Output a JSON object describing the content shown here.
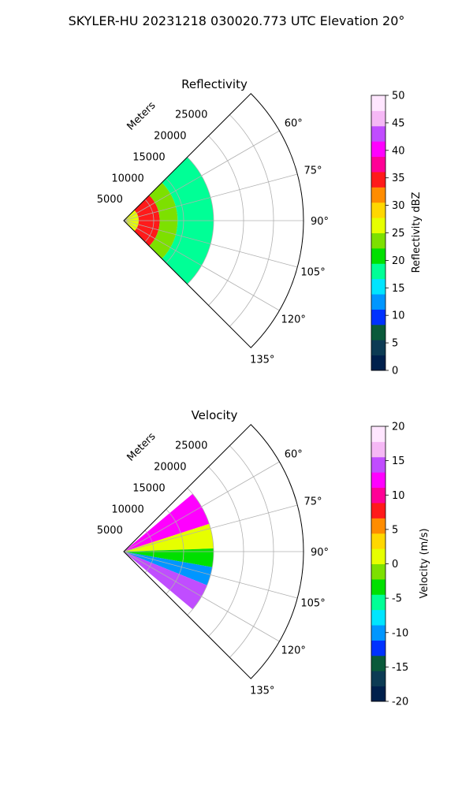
{
  "figure_title": "SKYLER-HU  20231218  030020.773 UTC Elevation 20°",
  "colors": {
    "grid": "#b0b0b0",
    "frame": "#000000",
    "radar_palette": [
      "#00204c",
      "#0c3b54",
      "#0a5a3a",
      "#0032ff",
      "#0096ff",
      "#00e5ff",
      "#00ff96",
      "#00e000",
      "#7de000",
      "#e6ff00",
      "#ffd700",
      "#ff8c00",
      "#ff1a1a",
      "#ff0096",
      "#ff00ff",
      "#c04dff",
      "#f5b8f5",
      "#ffe6ff"
    ]
  },
  "chart_data": [
    {
      "type": "polar-sector",
      "title": "Reflectivity",
      "radial_axis_label": "Meters",
      "radial_ticks": [
        "5000",
        "10000",
        "15000",
        "20000",
        "25000"
      ],
      "radial_range": [
        0,
        30000
      ],
      "angular_ticks": [
        "60°",
        "75°",
        "90°",
        "105°",
        "120°",
        "135°"
      ],
      "angular_range_deg": [
        45,
        135
      ],
      "grid": true,
      "colorbar": {
        "label": "Reflectivity dBZ",
        "ticks": [
          "0",
          "5",
          "10",
          "15",
          "20",
          "25",
          "30",
          "35",
          "40",
          "45",
          "50"
        ],
        "range": [
          0,
          50
        ]
      },
      "field": {
        "extent_m": [
          2000,
          15000
        ],
        "bands": [
          {
            "r_m": [
              0,
              2500
            ],
            "value": 25
          },
          {
            "r_m": [
              2500,
              6000
            ],
            "value": 34
          },
          {
            "r_m": [
              6000,
              9000
            ],
            "value": 24
          },
          {
            "r_m": [
              9000,
              15000
            ],
            "value": 17
          }
        ]
      }
    },
    {
      "type": "polar-sector",
      "title": "Velocity",
      "radial_axis_label": "Meters",
      "radial_ticks": [
        "5000",
        "10000",
        "15000",
        "20000",
        "25000"
      ],
      "radial_range": [
        0,
        30000
      ],
      "angular_ticks": [
        "60°",
        "75°",
        "90°",
        "105°",
        "120°",
        "135°"
      ],
      "angular_range_deg": [
        45,
        135
      ],
      "grid": true,
      "colorbar": {
        "label": "Velocity (m/s)",
        "ticks": [
          "-20",
          "-15",
          "-10",
          "-5",
          "0",
          "5",
          "10",
          "15",
          "20"
        ],
        "range": [
          -20,
          20
        ]
      },
      "field": {
        "extent_m": [
          2000,
          15000
        ],
        "sectors": [
          {
            "az_deg": [
              50,
              72
            ],
            "value": 12
          },
          {
            "az_deg": [
              72,
              88
            ],
            "value": 1
          },
          {
            "az_deg": [
              88,
              100
            ],
            "value": -4
          },
          {
            "az_deg": [
              100,
              112
            ],
            "value": -10
          },
          {
            "az_deg": [
              112,
              130
            ],
            "value": 14
          }
        ]
      }
    }
  ]
}
